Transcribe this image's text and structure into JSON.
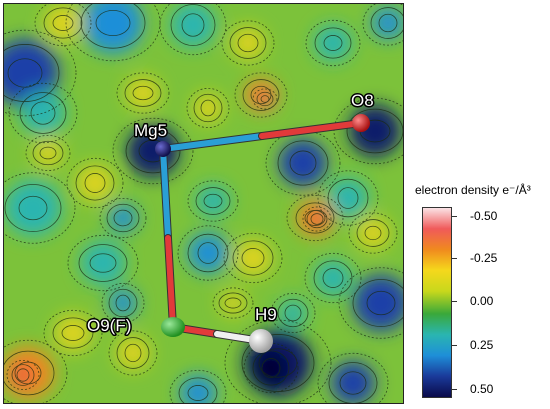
{
  "atoms": {
    "mg5": {
      "label": "Mg5",
      "color": "#1c1c6e"
    },
    "o8": {
      "label": "O8",
      "color": "#d42020"
    },
    "o9": {
      "label": "O9(F)",
      "color": "#2db52d"
    },
    "h9": {
      "label": "H9",
      "color": "#e8e8e8"
    }
  },
  "bond_colors": {
    "red": "#e23a3a",
    "blue": "#2a9fd6",
    "white": "#f0f0f0"
  },
  "legend": {
    "title": "electron density e⁻/Å³",
    "ticks": [
      "-0.50",
      "-0.25",
      "0.00",
      "0.25",
      "0.50"
    ],
    "colors": [
      "#fbe3e6",
      "#f05a5a",
      "#f08a1e",
      "#f5d81c",
      "#c8d81c",
      "#3aa83a",
      "#2ab5b0",
      "#1e8fd8",
      "#1a3a9a",
      "#0a0a4a"
    ]
  }
}
